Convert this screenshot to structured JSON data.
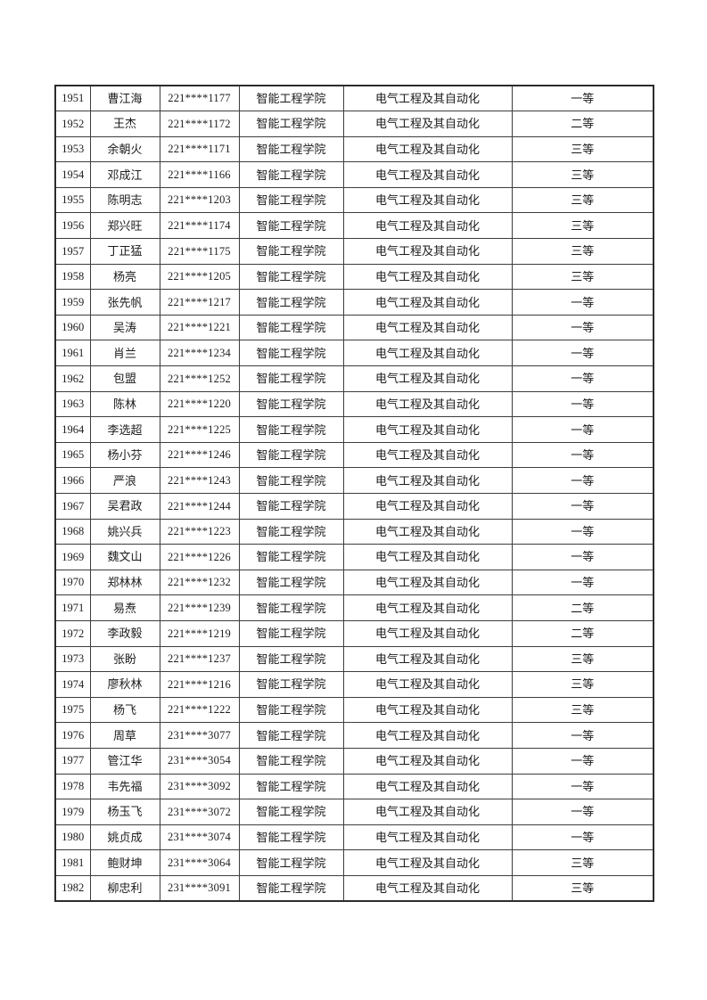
{
  "document": {
    "background_color": "#ffffff",
    "text_color": "#1c1c1c",
    "border_color": "#3d3d3d"
  },
  "table": {
    "column_keys": [
      "index",
      "name",
      "student_id",
      "college",
      "major",
      "grade"
    ],
    "rows": [
      [
        "1951",
        "曹江海",
        "221****1177",
        "智能工程学院",
        "电气工程及其自动化",
        "一等"
      ],
      [
        "1952",
        "王杰",
        "221****1172",
        "智能工程学院",
        "电气工程及其自动化",
        "二等"
      ],
      [
        "1953",
        "余朝火",
        "221****1171",
        "智能工程学院",
        "电气工程及其自动化",
        "三等"
      ],
      [
        "1954",
        "邓成江",
        "221****1166",
        "智能工程学院",
        "电气工程及其自动化",
        "三等"
      ],
      [
        "1955",
        "陈明志",
        "221****1203",
        "智能工程学院",
        "电气工程及其自动化",
        "三等"
      ],
      [
        "1956",
        "郑兴旺",
        "221****1174",
        "智能工程学院",
        "电气工程及其自动化",
        "三等"
      ],
      [
        "1957",
        "丁正猛",
        "221****1175",
        "智能工程学院",
        "电气工程及其自动化",
        "三等"
      ],
      [
        "1958",
        "杨亮",
        "221****1205",
        "智能工程学院",
        "电气工程及其自动化",
        "三等"
      ],
      [
        "1959",
        "张先帆",
        "221****1217",
        "智能工程学院",
        "电气工程及其自动化",
        "一等"
      ],
      [
        "1960",
        "吴涛",
        "221****1221",
        "智能工程学院",
        "电气工程及其自动化",
        "一等"
      ],
      [
        "1961",
        "肖兰",
        "221****1234",
        "智能工程学院",
        "电气工程及其自动化",
        "一等"
      ],
      [
        "1962",
        "包盟",
        "221****1252",
        "智能工程学院",
        "电气工程及其自动化",
        "一等"
      ],
      [
        "1963",
        "陈林",
        "221****1220",
        "智能工程学院",
        "电气工程及其自动化",
        "一等"
      ],
      [
        "1964",
        "李选超",
        "221****1225",
        "智能工程学院",
        "电气工程及其自动化",
        "一等"
      ],
      [
        "1965",
        "杨小芬",
        "221****1246",
        "智能工程学院",
        "电气工程及其自动化",
        "一等"
      ],
      [
        "1966",
        "严浪",
        "221****1243",
        "智能工程学院",
        "电气工程及其自动化",
        "一等"
      ],
      [
        "1967",
        "吴君政",
        "221****1244",
        "智能工程学院",
        "电气工程及其自动化",
        "一等"
      ],
      [
        "1968",
        "姚兴兵",
        "221****1223",
        "智能工程学院",
        "电气工程及其自动化",
        "一等"
      ],
      [
        "1969",
        "魏文山",
        "221****1226",
        "智能工程学院",
        "电气工程及其自动化",
        "一等"
      ],
      [
        "1970",
        "郑林林",
        "221****1232",
        "智能工程学院",
        "电气工程及其自动化",
        "一等"
      ],
      [
        "1971",
        "易焘",
        "221****1239",
        "智能工程学院",
        "电气工程及其自动化",
        "二等"
      ],
      [
        "1972",
        "李政毅",
        "221****1219",
        "智能工程学院",
        "电气工程及其自动化",
        "二等"
      ],
      [
        "1973",
        "张盼",
        "221****1237",
        "智能工程学院",
        "电气工程及其自动化",
        "三等"
      ],
      [
        "1974",
        "廖秋林",
        "221****1216",
        "智能工程学院",
        "电气工程及其自动化",
        "三等"
      ],
      [
        "1975",
        "杨飞",
        "221****1222",
        "智能工程学院",
        "电气工程及其自动化",
        "三等"
      ],
      [
        "1976",
        "周草",
        "231****3077",
        "智能工程学院",
        "电气工程及其自动化",
        "一等"
      ],
      [
        "1977",
        "管江华",
        "231****3054",
        "智能工程学院",
        "电气工程及其自动化",
        "一等"
      ],
      [
        "1978",
        "韦先福",
        "231****3092",
        "智能工程学院",
        "电气工程及其自动化",
        "一等"
      ],
      [
        "1979",
        "杨玉飞",
        "231****3072",
        "智能工程学院",
        "电气工程及其自动化",
        "一等"
      ],
      [
        "1980",
        "姚贞成",
        "231****3074",
        "智能工程学院",
        "电气工程及其自动化",
        "一等"
      ],
      [
        "1981",
        "鲍财坤",
        "231****3064",
        "智能工程学院",
        "电气工程及其自动化",
        "三等"
      ],
      [
        "1982",
        "柳忠利",
        "231****3091",
        "智能工程学院",
        "电气工程及其自动化",
        "三等"
      ]
    ]
  }
}
